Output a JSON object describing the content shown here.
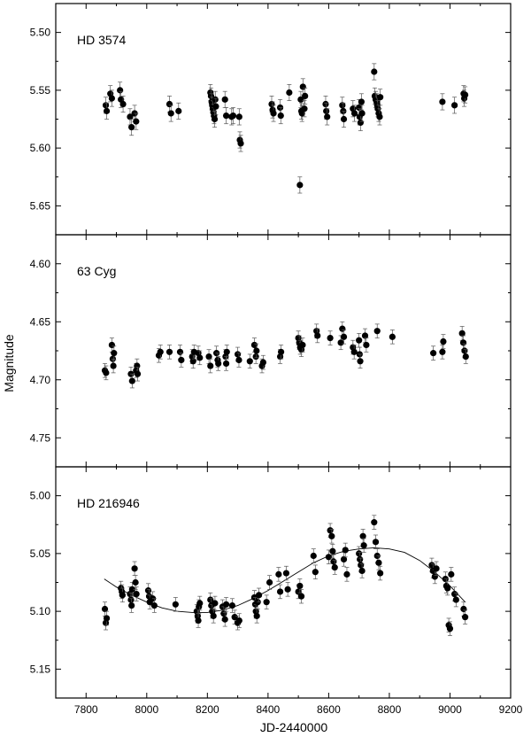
{
  "figure": {
    "ylabel": "Magnitude",
    "xlabel": "JD-2440000"
  },
  "chart_data": [
    {
      "type": "scatter",
      "title": "HD 3574",
      "ylabel": "Magnitude",
      "xlim": [
        7700,
        9200
      ],
      "ylim": [
        5.475,
        5.675
      ],
      "y_inverted": true,
      "yticks": [
        5.5,
        5.55,
        5.6,
        5.65
      ],
      "ytick_labels": [
        "5.50",
        "5.55",
        "5.60",
        "5.65"
      ],
      "series": [
        {
          "x": [
            7865,
            7868,
            7880,
            7885,
            7912,
            7915,
            7922,
            7945,
            7950,
            7960,
            7965,
            8075,
            8080,
            8105,
            8210,
            8212,
            8214,
            8216,
            8218,
            8220,
            8222,
            8224,
            8226,
            8228,
            8258,
            8262,
            8280,
            8285,
            8305,
            8307,
            8310,
            8412,
            8415,
            8418,
            8440,
            8442,
            8470,
            8505,
            8508,
            8510,
            8512,
            8515,
            8520,
            8522,
            8590,
            8592,
            8595,
            8645,
            8648,
            8650,
            8680,
            8685,
            8700,
            8702,
            8705,
            8708,
            8710,
            8750,
            8752,
            8755,
            8758,
            8760,
            8762,
            8765,
            8768,
            8770,
            8975,
            9015,
            9045,
            9047,
            9050
          ],
          "y": [
            5.563,
            5.568,
            5.553,
            5.557,
            5.55,
            5.558,
            5.562,
            5.573,
            5.582,
            5.57,
            5.577,
            5.562,
            5.57,
            5.568,
            5.552,
            5.555,
            5.56,
            5.563,
            5.566,
            5.569,
            5.572,
            5.575,
            5.558,
            5.564,
            5.558,
            5.572,
            5.573,
            5.572,
            5.573,
            5.593,
            5.596,
            5.562,
            5.567,
            5.57,
            5.565,
            5.572,
            5.552,
            5.632,
            5.558,
            5.568,
            5.57,
            5.547,
            5.566,
            5.555,
            5.562,
            5.568,
            5.573,
            5.563,
            5.568,
            5.575,
            5.566,
            5.57,
            5.565,
            5.573,
            5.578,
            5.56,
            5.57,
            5.534,
            5.555,
            5.558,
            5.56,
            5.563,
            5.566,
            5.57,
            5.573,
            5.556,
            5.56,
            5.563,
            5.553,
            5.557,
            5.554
          ],
          "error": 0.007
        }
      ]
    },
    {
      "type": "scatter",
      "title": "63  Cyg",
      "ylabel": "Magnitude",
      "xlim": [
        7700,
        9200
      ],
      "ylim": [
        4.575,
        4.775
      ],
      "y_inverted": true,
      "yticks": [
        4.6,
        4.65,
        4.7,
        4.75
      ],
      "ytick_labels": [
        "4.60",
        "4.65",
        "4.70",
        "4.75"
      ],
      "series": [
        {
          "x": [
            7862,
            7866,
            7885,
            7888,
            7890,
            7892,
            7948,
            7952,
            7965,
            7968,
            7970,
            8040,
            8045,
            8075,
            8110,
            8114,
            8150,
            8153,
            8156,
            8170,
            8175,
            8205,
            8210,
            8230,
            8234,
            8236,
            8260,
            8262,
            8264,
            8300,
            8304,
            8340,
            8355,
            8360,
            8362,
            8380,
            8384,
            8440,
            8443,
            8500,
            8503,
            8506,
            8510,
            8514,
            8560,
            8563,
            8605,
            8640,
            8645,
            8650,
            8680,
            8684,
            8700,
            8702,
            8704,
            8720,
            8724,
            8760,
            8810,
            8945,
            8975,
            8978,
            9040,
            9044,
            9048,
            9052
          ],
          "y": [
            4.692,
            4.694,
            4.67,
            4.682,
            4.688,
            4.677,
            4.695,
            4.701,
            4.692,
            4.688,
            4.695,
            4.679,
            4.676,
            4.676,
            4.676,
            4.683,
            4.68,
            4.684,
            4.676,
            4.677,
            4.681,
            4.68,
            4.688,
            4.677,
            4.683,
            4.686,
            4.68,
            4.686,
            4.676,
            4.678,
            4.683,
            4.684,
            4.67,
            4.68,
            4.675,
            4.688,
            4.685,
            4.68,
            4.676,
            4.664,
            4.668,
            4.672,
            4.674,
            4.67,
            4.658,
            4.662,
            4.664,
            4.668,
            4.656,
            4.663,
            4.672,
            4.676,
            4.666,
            4.678,
            4.684,
            4.662,
            4.67,
            4.658,
            4.663,
            4.677,
            4.676,
            4.667,
            4.66,
            4.668,
            4.675,
            4.68
          ],
          "error": 0.006
        }
      ]
    },
    {
      "type": "scatter",
      "title": "HD 216946",
      "ylabel": "Magnitude",
      "xlabel": "JD-2440000",
      "xlim": [
        7700,
        9200
      ],
      "ylim": [
        4.975,
        5.175
      ],
      "y_inverted": true,
      "yticks": [
        5.0,
        5.05,
        5.1,
        5.15
      ],
      "ytick_labels": [
        "5.00",
        "5.05",
        "5.10",
        "5.15"
      ],
      "xticks": [
        7800,
        8000,
        8200,
        8400,
        8600,
        8800,
        9000,
        9200
      ],
      "xtick_labels": [
        "7800",
        "8000",
        "8200",
        "8400",
        "8600",
        "8800",
        "9000",
        "9200"
      ],
      "series": [
        {
          "x": [
            7862,
            7865,
            7868,
            7915,
            7918,
            7920,
            7945,
            7948,
            7950,
            7952,
            7960,
            7963,
            7966,
            8005,
            8008,
            8010,
            8020,
            8025,
            8095,
            8165,
            8168,
            8170,
            8172,
            8175,
            8210,
            8213,
            8216,
            8220,
            8225,
            8250,
            8254,
            8258,
            8262,
            8282,
            8290,
            8300,
            8305,
            8355,
            8358,
            8360,
            8363,
            8366,
            8370,
            8395,
            8405,
            8435,
            8440,
            8460,
            8465,
            8500,
            8505,
            8510,
            8550,
            8556,
            8600,
            8605,
            8610,
            8613,
            8616,
            8620,
            8650,
            8655,
            8660,
            8700,
            8703,
            8706,
            8710,
            8713,
            8716,
            8750,
            8755,
            8760,
            8765,
            8770,
            8940,
            8944,
            8950,
            8955,
            8985,
            8988,
            8992,
            8996,
            9000,
            9004,
            9015,
            9020,
            9045,
            9050
          ],
          "y": [
            5.098,
            5.11,
            5.106,
            5.08,
            5.083,
            5.086,
            5.085,
            5.09,
            5.095,
            5.081,
            5.063,
            5.075,
            5.085,
            5.082,
            5.087,
            5.092,
            5.089,
            5.095,
            5.094,
            5.1,
            5.104,
            5.108,
            5.096,
            5.093,
            5.09,
            5.095,
            5.1,
            5.104,
            5.093,
            5.096,
            5.102,
            5.107,
            5.094,
            5.095,
            5.105,
            5.11,
            5.108,
            5.088,
            5.094,
            5.1,
            5.104,
            5.092,
            5.086,
            5.092,
            5.075,
            5.068,
            5.083,
            5.067,
            5.081,
            5.083,
            5.078,
            5.087,
            5.052,
            5.066,
            5.053,
            5.03,
            5.035,
            5.048,
            5.057,
            5.062,
            5.055,
            5.047,
            5.068,
            5.05,
            5.055,
            5.06,
            5.065,
            5.035,
            5.043,
            5.023,
            5.04,
            5.052,
            5.058,
            5.067,
            5.06,
            5.065,
            5.07,
            5.063,
            5.072,
            5.078,
            5.08,
            5.112,
            5.115,
            5.068,
            5.085,
            5.09,
            5.098,
            5.105
          ],
          "error": 0.006
        }
      ],
      "fit_curve": {
        "x": [
          7860,
          7900,
          7950,
          8000,
          8050,
          8100,
          8150,
          8200,
          8250,
          8300,
          8350,
          8400,
          8450,
          8500,
          8550,
          8600,
          8650,
          8700,
          8750,
          8800,
          8850,
          8900,
          8950,
          9000,
          9050
        ],
        "y": [
          5.072,
          5.079,
          5.086,
          5.092,
          5.097,
          5.1,
          5.101,
          5.101,
          5.099,
          5.095,
          5.089,
          5.082,
          5.074,
          5.066,
          5.058,
          5.052,
          5.048,
          5.046,
          5.045,
          5.046,
          5.049,
          5.056,
          5.066,
          5.078,
          5.092
        ]
      }
    }
  ]
}
